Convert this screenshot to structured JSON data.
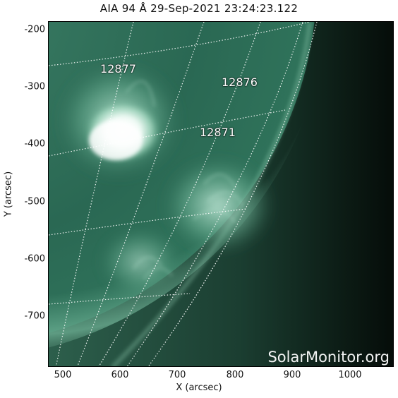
{
  "image": {
    "title": "AIA 94 Å 29-Sep-2021 23:24:23.122",
    "x_axis": {
      "label": "X (arcsec)",
      "ticks": [
        "500",
        "600",
        "700",
        "800",
        "900",
        "1000"
      ]
    },
    "y_axis": {
      "label": "Y (arcsec)",
      "ticks": [
        "-200",
        "-300",
        "-400",
        "-500",
        "-600",
        "-700"
      ]
    },
    "regions": [
      {
        "label": "12877"
      },
      {
        "label": "12876"
      },
      {
        "label": "12871"
      }
    ],
    "watermark": "SolarMonitor.org",
    "colors": {
      "disk_bright": "#5f9f85",
      "disk_mid": "#2f6e58",
      "disk_dark": "#1c4e3d",
      "limb_glow": "#86c7a9",
      "space": "#08120d",
      "flare": "#ffffff",
      "grid": "#ffffff"
    }
  }
}
